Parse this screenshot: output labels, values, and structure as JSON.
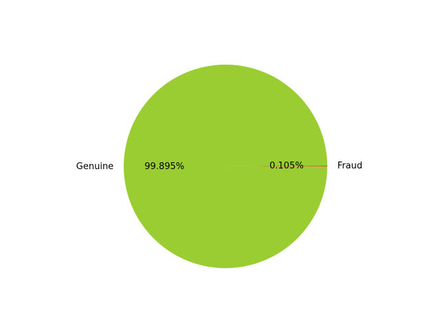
{
  "chart_data": {
    "type": "pie",
    "title": "",
    "slices": [
      {
        "label": "Fraud",
        "value": 0.105,
        "pct_label": "0.105%",
        "color": "#e8442e"
      },
      {
        "label": "Genuine",
        "value": 99.895,
        "pct_label": "99.895%",
        "color": "#9acd32"
      }
    ],
    "start_angle_deg": 0,
    "direction": "counterclockwise",
    "legend": "none"
  }
}
